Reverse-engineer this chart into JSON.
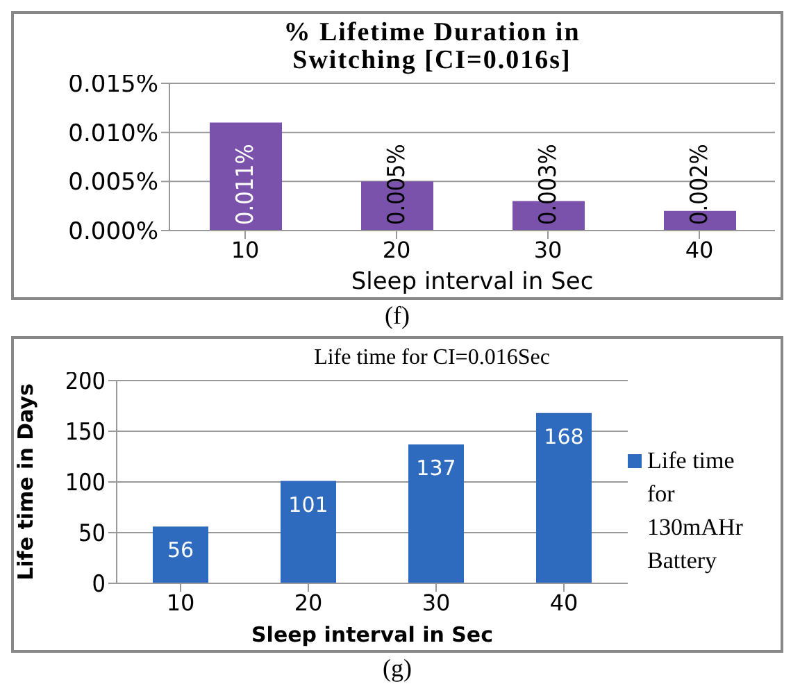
{
  "chart_data": [
    {
      "type": "bar",
      "title": "% Lifetime Duration in Switching [CI=0.016s]",
      "xlabel": "Sleep interval in Sec",
      "categories": [
        "10",
        "20",
        "30",
        "40"
      ],
      "series": [
        {
          "color": "#7b52ab",
          "values": [
            0.011,
            0.005,
            0.003,
            0.002
          ],
          "value_labels": [
            "0.011%",
            "0.005%",
            "0.003%",
            "0.002%"
          ]
        }
      ],
      "ylim": [
        0,
        0.015
      ],
      "yticks": [
        {
          "value": 0,
          "label": "0.000%"
        },
        {
          "value": 0.005,
          "label": "0.005%"
        },
        {
          "value": 0.01,
          "label": "0.010%"
        },
        {
          "value": 0.015,
          "label": "0.015%"
        }
      ],
      "grid": "y",
      "annotations": [
        "(f)"
      ]
    },
    {
      "type": "bar",
      "title": "Life time for CI=0.016Sec",
      "xlabel": "Sleep interval in Sec",
      "ylabel": "Life time in Days",
      "categories": [
        "10",
        "20",
        "30",
        "40"
      ],
      "series": [
        {
          "name": "Life time for 130mAHr Battery",
          "color": "#2e6bbf",
          "values": [
            56,
            101,
            137,
            168
          ]
        }
      ],
      "ylim": [
        0,
        200
      ],
      "yticks": [
        0,
        50,
        100,
        150,
        200
      ],
      "grid": "y",
      "legend": "right",
      "data_labels": true,
      "annotations": [
        "(g)"
      ]
    }
  ]
}
